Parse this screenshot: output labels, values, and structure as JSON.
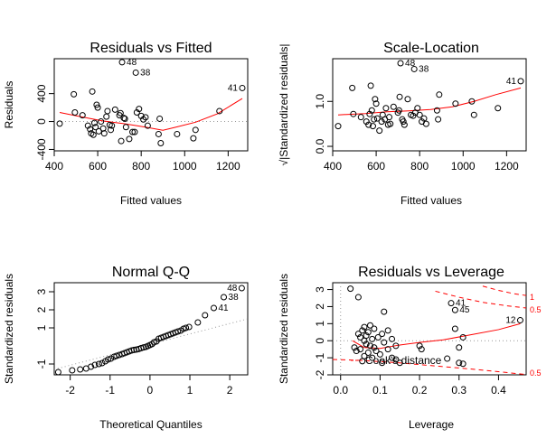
{
  "chart_data": [
    {
      "type": "scatter",
      "title": "Residuals vs Fitted",
      "xlabel": "Fitted values",
      "ylabel": "Residuals",
      "xlim": [
        400,
        1290
      ],
      "ylim": [
        -420,
        900
      ],
      "xticks": [
        400,
        600,
        800,
        1000,
        1200
      ],
      "yticks": [
        -400,
        0,
        400
      ],
      "reference_line": 0,
      "points": [
        [
          425,
          -30
        ],
        [
          490,
          390
        ],
        [
          495,
          130
        ],
        [
          530,
          90
        ],
        [
          555,
          -60
        ],
        [
          565,
          -110
        ],
        [
          570,
          -170
        ],
        [
          575,
          430
        ],
        [
          580,
          -190
        ],
        [
          585,
          -20
        ],
        [
          590,
          -80
        ],
        [
          595,
          240
        ],
        [
          600,
          200
        ],
        [
          605,
          -140
        ],
        [
          615,
          0
        ],
        [
          625,
          -100
        ],
        [
          630,
          -170
        ],
        [
          640,
          70
        ],
        [
          645,
          150
        ],
        [
          655,
          -50
        ],
        [
          660,
          -120
        ],
        [
          665,
          -60
        ],
        [
          680,
          170
        ],
        [
          700,
          90
        ],
        [
          705,
          120
        ],
        [
          708,
          -280
        ],
        [
          712,
          850
        ],
        [
          720,
          50
        ],
        [
          725,
          40
        ],
        [
          730,
          -80
        ],
        [
          745,
          -250
        ],
        [
          760,
          -150
        ],
        [
          770,
          -150
        ],
        [
          775,
          700
        ],
        [
          780,
          130
        ],
        [
          790,
          180
        ],
        [
          800,
          80
        ],
        [
          810,
          30
        ],
        [
          820,
          60
        ],
        [
          830,
          -60
        ],
        [
          880,
          -180
        ],
        [
          885,
          40
        ],
        [
          890,
          -310
        ],
        [
          965,
          -180
        ],
        [
          1040,
          -240
        ],
        [
          1050,
          -120
        ],
        [
          1160,
          150
        ],
        [
          1265,
          480
        ]
      ],
      "point_labels": [
        {
          "label": "48",
          "x": 712,
          "y": 850
        },
        {
          "label": "38",
          "x": 775,
          "y": 700
        },
        {
          "label": "41",
          "x": 1265,
          "y": 480
        }
      ],
      "smoother": [
        [
          425,
          130
        ],
        [
          520,
          70
        ],
        [
          620,
          10
        ],
        [
          720,
          -30
        ],
        [
          820,
          -80
        ],
        [
          900,
          -125
        ],
        [
          960,
          -80
        ],
        [
          1050,
          -10
        ],
        [
          1150,
          110
        ],
        [
          1265,
          330
        ]
      ]
    },
    {
      "type": "scatter",
      "title": "Scale-Location",
      "xlabel": "Fitted values",
      "ylabel": "√|Standardized residuals|",
      "xlim": [
        400,
        1290
      ],
      "ylim": [
        -0.1,
        1.95
      ],
      "xticks": [
        400,
        600,
        800,
        1000,
        1200
      ],
      "yticks": [
        0.0,
        1.0
      ],
      "ytick_labels": [
        "0.0",
        "1.0"
      ],
      "points": [
        [
          425,
          0.45
        ],
        [
          490,
          1.3
        ],
        [
          495,
          0.72
        ],
        [
          530,
          0.65
        ],
        [
          555,
          0.55
        ],
        [
          565,
          0.48
        ],
        [
          570,
          0.72
        ],
        [
          575,
          1.35
        ],
        [
          580,
          0.8
        ],
        [
          585,
          0.45
        ],
        [
          590,
          0.6
        ],
        [
          595,
          1.05
        ],
        [
          600,
          0.95
        ],
        [
          605,
          0.62
        ],
        [
          615,
          0.35
        ],
        [
          625,
          0.55
        ],
        [
          630,
          0.7
        ],
        [
          640,
          0.6
        ],
        [
          645,
          0.85
        ],
        [
          655,
          0.48
        ],
        [
          660,
          0.65
        ],
        [
          665,
          0.5
        ],
        [
          680,
          0.88
        ],
        [
          700,
          0.75
        ],
        [
          705,
          0.8
        ],
        [
          708,
          1.1
        ],
        [
          712,
          1.85
        ],
        [
          720,
          0.6
        ],
        [
          725,
          0.55
        ],
        [
          730,
          0.48
        ],
        [
          745,
          1.05
        ],
        [
          760,
          0.7
        ],
        [
          770,
          0.68
        ],
        [
          775,
          1.72
        ],
        [
          780,
          0.75
        ],
        [
          790,
          0.85
        ],
        [
          800,
          0.7
        ],
        [
          810,
          0.55
        ],
        [
          820,
          0.62
        ],
        [
          830,
          0.5
        ],
        [
          880,
          0.8
        ],
        [
          885,
          0.6
        ],
        [
          890,
          1.15
        ],
        [
          965,
          0.95
        ],
        [
          1040,
          1.0
        ],
        [
          1050,
          0.7
        ],
        [
          1160,
          0.85
        ],
        [
          1265,
          1.45
        ]
      ],
      "point_labels": [
        {
          "label": "48",
          "x": 712,
          "y": 1.85
        },
        {
          "label": "38",
          "x": 775,
          "y": 1.72
        },
        {
          "label": "41",
          "x": 1265,
          "y": 1.45
        }
      ],
      "smoother": [
        [
          425,
          0.7
        ],
        [
          550,
          0.73
        ],
        [
          650,
          0.77
        ],
        [
          750,
          0.79
        ],
        [
          850,
          0.82
        ],
        [
          950,
          0.88
        ],
        [
          1050,
          1.0
        ],
        [
          1150,
          1.15
        ],
        [
          1265,
          1.3
        ]
      ]
    },
    {
      "type": "scatter",
      "title": "Normal Q-Q",
      "xlabel": "Theoretical Quantiles",
      "ylabel": "Standardized residuals",
      "xlim": [
        -2.4,
        2.45
      ],
      "ylim": [
        -1.6,
        3.5
      ],
      "xticks": [
        -2,
        -1,
        0,
        1,
        2
      ],
      "yticks": [
        -1,
        1,
        2,
        3
      ],
      "points": [
        [
          -2.3,
          -1.45
        ],
        [
          -1.95,
          -1.35
        ],
        [
          -1.75,
          -1.3
        ],
        [
          -1.6,
          -1.25
        ],
        [
          -1.48,
          -1.15
        ],
        [
          -1.38,
          -1.05
        ],
        [
          -1.28,
          -1.0
        ],
        [
          -1.2,
          -0.95
        ],
        [
          -1.12,
          -0.85
        ],
        [
          -1.05,
          -0.75
        ],
        [
          -0.98,
          -0.7
        ],
        [
          -0.9,
          -0.6
        ],
        [
          -0.84,
          -0.55
        ],
        [
          -0.77,
          -0.5
        ],
        [
          -0.7,
          -0.45
        ],
        [
          -0.64,
          -0.4
        ],
        [
          -0.58,
          -0.35
        ],
        [
          -0.52,
          -0.3
        ],
        [
          -0.46,
          -0.25
        ],
        [
          -0.4,
          -0.22
        ],
        [
          -0.34,
          -0.2
        ],
        [
          -0.28,
          -0.17
        ],
        [
          -0.22,
          -0.12
        ],
        [
          -0.16,
          -0.08
        ],
        [
          -0.1,
          -0.05
        ],
        [
          -0.05,
          0.0
        ],
        [
          0.0,
          0.05
        ],
        [
          0.05,
          0.1
        ],
        [
          0.1,
          0.2
        ],
        [
          0.16,
          0.25
        ],
        [
          0.22,
          0.4
        ],
        [
          0.28,
          0.45
        ],
        [
          0.34,
          0.5
        ],
        [
          0.4,
          0.55
        ],
        [
          0.46,
          0.6
        ],
        [
          0.52,
          0.65
        ],
        [
          0.58,
          0.7
        ],
        [
          0.64,
          0.75
        ],
        [
          0.7,
          0.8
        ],
        [
          0.77,
          0.85
        ],
        [
          0.84,
          0.95
        ],
        [
          0.9,
          1.0
        ],
        [
          0.98,
          1.05
        ],
        [
          1.2,
          1.3
        ],
        [
          1.38,
          1.7
        ],
        [
          1.6,
          2.1
        ],
        [
          1.85,
          2.7
        ],
        [
          2.3,
          3.2
        ]
      ],
      "point_labels": [
        {
          "label": "48",
          "x": 2.3,
          "y": 3.2
        },
        {
          "label": "38",
          "x": 1.85,
          "y": 2.7
        },
        {
          "label": "41",
          "x": 1.6,
          "y": 2.1
        }
      ],
      "reference_line": [
        [
          -2.4,
          -1.3
        ],
        [
          2.45,
          1.5
        ]
      ]
    },
    {
      "type": "scatter",
      "title": "Residuals vs Leverage",
      "xlabel": "Leverage",
      "ylabel": "Standardized residuals",
      "xlim": [
        -0.02,
        0.47
      ],
      "ylim": [
        -2.0,
        3.4
      ],
      "xticks": [
        0.0,
        0.1,
        0.2,
        0.3,
        0.4
      ],
      "xtick_labels": [
        "0.0",
        "0.1",
        "0.2",
        "0.3",
        "0.4"
      ],
      "yticks": [
        -2,
        -1,
        0,
        1,
        2,
        3
      ],
      "points": [
        [
          0.025,
          3.05
        ],
        [
          0.045,
          2.55
        ],
        [
          0.035,
          -0.4
        ],
        [
          0.04,
          -0.6
        ],
        [
          0.045,
          0.4
        ],
        [
          0.05,
          0.2
        ],
        [
          0.05,
          -0.5
        ],
        [
          0.055,
          0.6
        ],
        [
          0.055,
          -1.2
        ],
        [
          0.06,
          0.8
        ],
        [
          0.06,
          0.0
        ],
        [
          0.06,
          -0.9
        ],
        [
          0.065,
          0.3
        ],
        [
          0.065,
          -0.2
        ],
        [
          0.07,
          0.5
        ],
        [
          0.07,
          -0.7
        ],
        [
          0.075,
          0.9
        ],
        [
          0.075,
          -0.3
        ],
        [
          0.08,
          0.1
        ],
        [
          0.08,
          -1.0
        ],
        [
          0.085,
          0.7
        ],
        [
          0.085,
          -0.4
        ],
        [
          0.09,
          -0.6
        ],
        [
          0.095,
          0.2
        ],
        [
          0.1,
          -0.8
        ],
        [
          0.105,
          0.4
        ],
        [
          0.105,
          -1.3
        ],
        [
          0.11,
          1.7
        ],
        [
          0.11,
          -0.1
        ],
        [
          0.12,
          0.6
        ],
        [
          0.12,
          -0.5
        ],
        [
          0.13,
          -1.0
        ],
        [
          0.13,
          0.1
        ],
        [
          0.14,
          -0.3
        ],
        [
          0.14,
          -1.1
        ],
        [
          0.15,
          -1.3
        ],
        [
          0.2,
          -0.3
        ],
        [
          0.205,
          -0.5
        ],
        [
          0.27,
          -1.05
        ],
        [
          0.28,
          2.2
        ],
        [
          0.29,
          1.8
        ],
        [
          0.3,
          -1.3
        ],
        [
          0.31,
          0.2
        ],
        [
          0.29,
          0.7
        ],
        [
          0.3,
          -0.4
        ],
        [
          0.31,
          -1.35
        ],
        [
          0.455,
          1.2
        ]
      ],
      "point_labels": [
        {
          "label": "41",
          "x": 0.28,
          "y": 2.2
        },
        {
          "label": "45",
          "x": 0.29,
          "y": 1.8
        },
        {
          "label": "12",
          "x": 0.455,
          "y": 1.2
        }
      ],
      "smoother": [
        [
          0.03,
          0.0
        ],
        [
          0.06,
          -0.4
        ],
        [
          0.1,
          -0.45
        ],
        [
          0.15,
          -0.25
        ],
        [
          0.2,
          -0.1
        ],
        [
          0.26,
          0.05
        ],
        [
          0.33,
          0.35
        ],
        [
          0.4,
          0.65
        ],
        [
          0.455,
          1.0
        ]
      ],
      "cooks_distance": {
        "legend": "Cook's distance",
        "contour_labels": [
          "1",
          "0.5",
          "0.5"
        ]
      }
    }
  ]
}
